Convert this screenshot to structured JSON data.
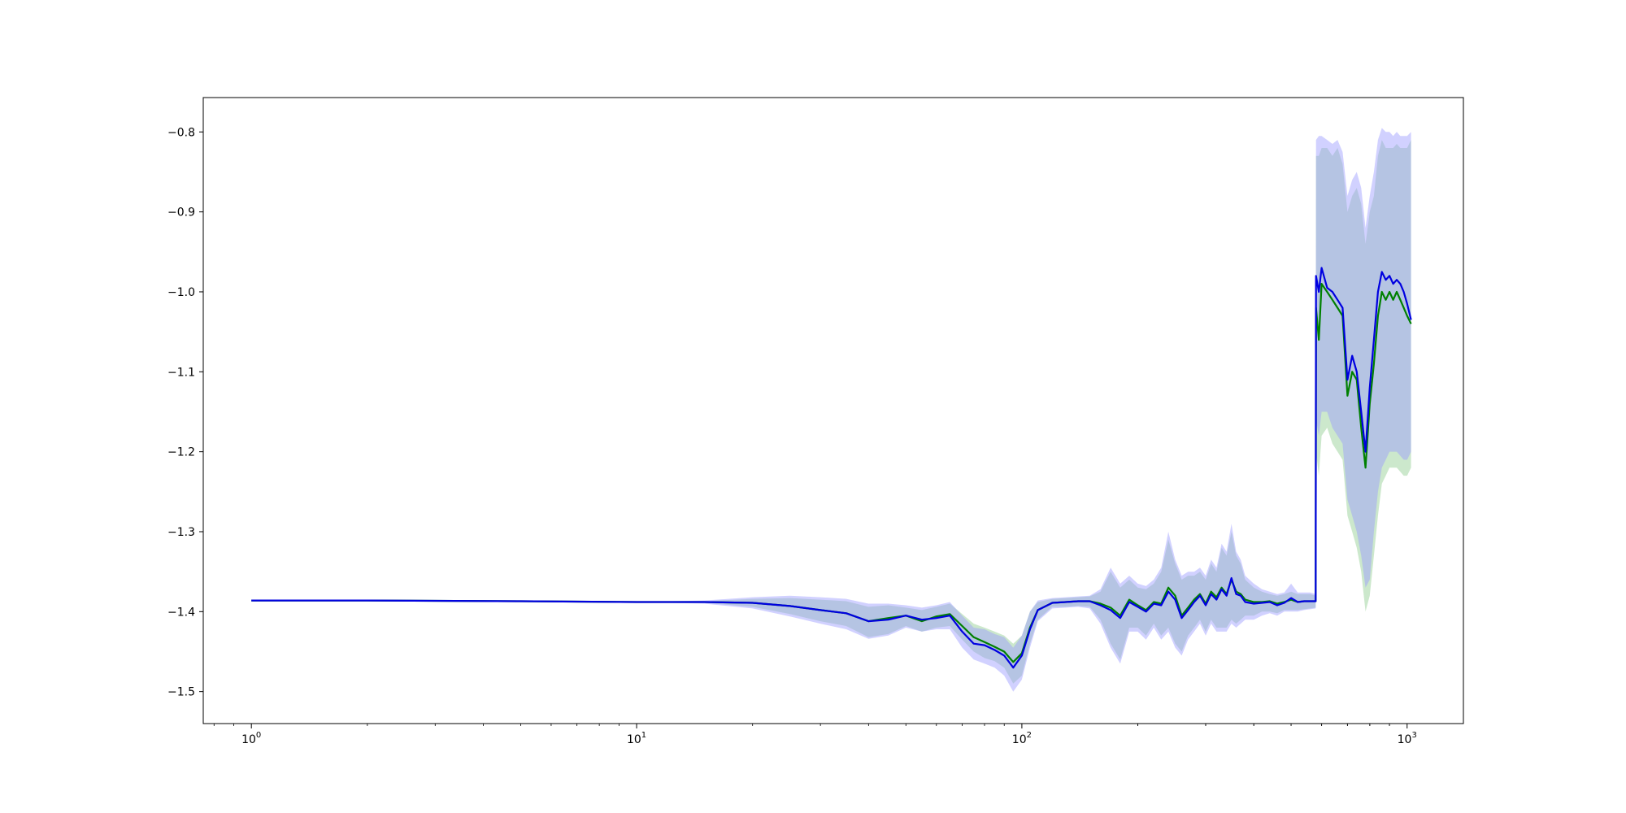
{
  "chart_data": {
    "type": "line",
    "title": "",
    "xlabel": "",
    "ylabel": "",
    "xscale": "log",
    "xlim": [
      0.75,
      1400
    ],
    "ylim": [
      -1.54,
      -0.757
    ],
    "grid": false,
    "legend": "none",
    "x_ticks": [
      {
        "value": 1,
        "base": "10",
        "exp": "0"
      },
      {
        "value": 10,
        "base": "10",
        "exp": "1"
      },
      {
        "value": 100,
        "base": "10",
        "exp": "2"
      },
      {
        "value": 1000,
        "base": "10",
        "exp": "3"
      }
    ],
    "y_ticks": [
      {
        "value": -0.8,
        "label": "−0.8"
      },
      {
        "value": -0.9,
        "label": "−0.9"
      },
      {
        "value": -1.0,
        "label": "−1.0"
      },
      {
        "value": -1.1,
        "label": "−1.1"
      },
      {
        "value": -1.2,
        "label": "−1.2"
      },
      {
        "value": -1.3,
        "label": "−1.3"
      },
      {
        "value": -1.4,
        "label": "−1.4"
      },
      {
        "value": -1.5,
        "label": "−1.5"
      }
    ],
    "series": [
      {
        "color": "#008000",
        "band_color": "#8fcc8f",
        "points": [
          [
            1,
            -1.386,
            -1.386,
            -1.386
          ],
          [
            2,
            -1.386,
            -1.386,
            -1.386
          ],
          [
            5,
            -1.387,
            -1.387,
            -1.387
          ],
          [
            10,
            -1.388,
            -1.388,
            -1.388
          ],
          [
            15,
            -1.388,
            -1.387,
            -1.389
          ],
          [
            20,
            -1.389,
            -1.384,
            -1.394
          ],
          [
            25,
            -1.393,
            -1.383,
            -1.403
          ],
          [
            30,
            -1.398,
            -1.385,
            -1.412
          ],
          [
            35,
            -1.402,
            -1.387,
            -1.418
          ],
          [
            40,
            -1.412,
            -1.394,
            -1.432
          ],
          [
            45,
            -1.408,
            -1.392,
            -1.428
          ],
          [
            50,
            -1.405,
            -1.395,
            -1.418
          ],
          [
            55,
            -1.412,
            -1.398,
            -1.425
          ],
          [
            60,
            -1.406,
            -1.394,
            -1.42
          ],
          [
            65,
            -1.403,
            -1.39,
            -1.418
          ],
          [
            70,
            -1.418,
            -1.403,
            -1.435
          ],
          [
            75,
            -1.432,
            -1.415,
            -1.45
          ],
          [
            80,
            -1.438,
            -1.42,
            -1.458
          ],
          [
            85,
            -1.444,
            -1.425,
            -1.462
          ],
          [
            90,
            -1.45,
            -1.43,
            -1.47
          ],
          [
            95,
            -1.463,
            -1.44,
            -1.49
          ],
          [
            100,
            -1.452,
            -1.43,
            -1.48
          ],
          [
            105,
            -1.42,
            -1.4,
            -1.44
          ],
          [
            110,
            -1.398,
            -1.388,
            -1.41
          ],
          [
            120,
            -1.389,
            -1.384,
            -1.394
          ],
          [
            130,
            -1.388,
            -1.383,
            -1.394
          ],
          [
            140,
            -1.387,
            -1.382,
            -1.393
          ],
          [
            150,
            -1.387,
            -1.381,
            -1.394
          ],
          [
            160,
            -1.39,
            -1.375,
            -1.41
          ],
          [
            170,
            -1.395,
            -1.35,
            -1.44
          ],
          [
            180,
            -1.405,
            -1.37,
            -1.46
          ],
          [
            190,
            -1.385,
            -1.36,
            -1.42
          ],
          [
            200,
            -1.392,
            -1.37,
            -1.42
          ],
          [
            210,
            -1.398,
            -1.372,
            -1.43
          ],
          [
            220,
            -1.388,
            -1.365,
            -1.415
          ],
          [
            230,
            -1.39,
            -1.35,
            -1.43
          ],
          [
            240,
            -1.37,
            -1.31,
            -1.42
          ],
          [
            250,
            -1.38,
            -1.34,
            -1.44
          ],
          [
            260,
            -1.405,
            -1.36,
            -1.45
          ],
          [
            270,
            -1.395,
            -1.355,
            -1.43
          ],
          [
            280,
            -1.385,
            -1.355,
            -1.42
          ],
          [
            290,
            -1.378,
            -1.35,
            -1.41
          ],
          [
            300,
            -1.39,
            -1.36,
            -1.425
          ],
          [
            310,
            -1.375,
            -1.34,
            -1.41
          ],
          [
            320,
            -1.382,
            -1.35,
            -1.42
          ],
          [
            330,
            -1.37,
            -1.32,
            -1.42
          ],
          [
            340,
            -1.378,
            -1.33,
            -1.42
          ],
          [
            350,
            -1.36,
            -1.3,
            -1.41
          ],
          [
            360,
            -1.375,
            -1.33,
            -1.415
          ],
          [
            370,
            -1.378,
            -1.34,
            -1.41
          ],
          [
            380,
            -1.385,
            -1.36,
            -1.405
          ],
          [
            400,
            -1.388,
            -1.37,
            -1.405
          ],
          [
            420,
            -1.388,
            -1.375,
            -1.4
          ],
          [
            440,
            -1.387,
            -1.378,
            -1.4
          ],
          [
            460,
            -1.39,
            -1.38,
            -1.402
          ],
          [
            480,
            -1.388,
            -1.378,
            -1.398
          ],
          [
            500,
            -1.385,
            -1.375,
            -1.398
          ],
          [
            520,
            -1.388,
            -1.378,
            -1.398
          ],
          [
            540,
            -1.387,
            -1.378,
            -1.397
          ],
          [
            560,
            -1.387,
            -1.378,
            -1.396
          ],
          [
            579,
            -1.387,
            -1.38,
            -1.395
          ],
          [
            580,
            -1.02,
            -0.83,
            -1.2
          ],
          [
            590,
            -1.06,
            -0.83,
            -1.23
          ],
          [
            600,
            -0.99,
            -0.82,
            -1.18
          ],
          [
            620,
            -1.0,
            -0.82,
            -1.17
          ],
          [
            640,
            -1.01,
            -0.83,
            -1.19
          ],
          [
            660,
            -1.02,
            -0.82,
            -1.2
          ],
          [
            680,
            -1.03,
            -0.84,
            -1.21
          ],
          [
            700,
            -1.13,
            -0.9,
            -1.28
          ],
          [
            720,
            -1.1,
            -0.88,
            -1.3
          ],
          [
            740,
            -1.11,
            -0.87,
            -1.32
          ],
          [
            760,
            -1.17,
            -0.89,
            -1.35
          ],
          [
            780,
            -1.22,
            -0.94,
            -1.4
          ],
          [
            800,
            -1.14,
            -0.9,
            -1.38
          ],
          [
            820,
            -1.09,
            -0.88,
            -1.33
          ],
          [
            840,
            -1.03,
            -0.83,
            -1.28
          ],
          [
            860,
            -1.0,
            -0.81,
            -1.24
          ],
          [
            880,
            -1.01,
            -0.82,
            -1.23
          ],
          [
            900,
            -1.0,
            -0.82,
            -1.22
          ],
          [
            920,
            -1.01,
            -0.82,
            -1.22
          ],
          [
            940,
            -1.0,
            -0.815,
            -1.22
          ],
          [
            960,
            -1.01,
            -0.82,
            -1.225
          ],
          [
            980,
            -1.02,
            -0.82,
            -1.23
          ],
          [
            1000,
            -1.03,
            -0.82,
            -1.23
          ],
          [
            1024,
            -1.04,
            -0.81,
            -1.22
          ]
        ]
      },
      {
        "color": "#0000e0",
        "band_color": "#9999ff",
        "points": [
          [
            1,
            -1.386,
            -1.386,
            -1.386
          ],
          [
            2,
            -1.386,
            -1.386,
            -1.386
          ],
          [
            5,
            -1.387,
            -1.387,
            -1.387
          ],
          [
            10,
            -1.388,
            -1.388,
            -1.388
          ],
          [
            15,
            -1.388,
            -1.386,
            -1.39
          ],
          [
            20,
            -1.389,
            -1.382,
            -1.396
          ],
          [
            25,
            -1.393,
            -1.38,
            -1.406
          ],
          [
            30,
            -1.398,
            -1.382,
            -1.415
          ],
          [
            35,
            -1.402,
            -1.384,
            -1.422
          ],
          [
            40,
            -1.412,
            -1.39,
            -1.434
          ],
          [
            45,
            -1.41,
            -1.39,
            -1.43
          ],
          [
            50,
            -1.405,
            -1.392,
            -1.42
          ],
          [
            55,
            -1.41,
            -1.395,
            -1.425
          ],
          [
            60,
            -1.408,
            -1.392,
            -1.422
          ],
          [
            65,
            -1.405,
            -1.388,
            -1.422
          ],
          [
            70,
            -1.425,
            -1.405,
            -1.445
          ],
          [
            75,
            -1.44,
            -1.42,
            -1.46
          ],
          [
            80,
            -1.442,
            -1.422,
            -1.465
          ],
          [
            85,
            -1.448,
            -1.428,
            -1.47
          ],
          [
            90,
            -1.455,
            -1.432,
            -1.48
          ],
          [
            95,
            -1.47,
            -1.445,
            -1.5
          ],
          [
            100,
            -1.455,
            -1.43,
            -1.485
          ],
          [
            105,
            -1.422,
            -1.4,
            -1.445
          ],
          [
            110,
            -1.398,
            -1.386,
            -1.412
          ],
          [
            120,
            -1.389,
            -1.383,
            -1.396
          ],
          [
            130,
            -1.388,
            -1.382,
            -1.395
          ],
          [
            140,
            -1.387,
            -1.381,
            -1.394
          ],
          [
            150,
            -1.387,
            -1.38,
            -1.396
          ],
          [
            160,
            -1.392,
            -1.372,
            -1.415
          ],
          [
            170,
            -1.398,
            -1.345,
            -1.445
          ],
          [
            180,
            -1.408,
            -1.365,
            -1.465
          ],
          [
            190,
            -1.388,
            -1.355,
            -1.425
          ],
          [
            200,
            -1.394,
            -1.365,
            -1.425
          ],
          [
            210,
            -1.4,
            -1.368,
            -1.435
          ],
          [
            220,
            -1.39,
            -1.36,
            -1.42
          ],
          [
            230,
            -1.392,
            -1.345,
            -1.435
          ],
          [
            240,
            -1.375,
            -1.3,
            -1.425
          ],
          [
            250,
            -1.385,
            -1.335,
            -1.445
          ],
          [
            260,
            -1.408,
            -1.355,
            -1.455
          ],
          [
            270,
            -1.398,
            -1.35,
            -1.435
          ],
          [
            280,
            -1.388,
            -1.35,
            -1.425
          ],
          [
            290,
            -1.38,
            -1.345,
            -1.415
          ],
          [
            300,
            -1.392,
            -1.355,
            -1.43
          ],
          [
            310,
            -1.378,
            -1.335,
            -1.415
          ],
          [
            320,
            -1.385,
            -1.345,
            -1.425
          ],
          [
            330,
            -1.372,
            -1.315,
            -1.425
          ],
          [
            340,
            -1.38,
            -1.325,
            -1.425
          ],
          [
            350,
            -1.358,
            -1.29,
            -1.415
          ],
          [
            360,
            -1.378,
            -1.325,
            -1.42
          ],
          [
            370,
            -1.38,
            -1.335,
            -1.415
          ],
          [
            380,
            -1.388,
            -1.355,
            -1.41
          ],
          [
            400,
            -1.39,
            -1.365,
            -1.41
          ],
          [
            420,
            -1.389,
            -1.372,
            -1.405
          ],
          [
            440,
            -1.388,
            -1.375,
            -1.402
          ],
          [
            460,
            -1.392,
            -1.378,
            -1.405
          ],
          [
            480,
            -1.389,
            -1.376,
            -1.4
          ],
          [
            500,
            -1.383,
            -1.365,
            -1.4
          ],
          [
            520,
            -1.388,
            -1.376,
            -1.4
          ],
          [
            540,
            -1.387,
            -1.376,
            -1.398
          ],
          [
            560,
            -1.387,
            -1.376,
            -1.397
          ],
          [
            579,
            -1.387,
            -1.378,
            -1.396
          ],
          [
            580,
            -0.98,
            -0.81,
            -1.16
          ],
          [
            590,
            -1.0,
            -0.805,
            -1.18
          ],
          [
            600,
            -0.97,
            -0.805,
            -1.15
          ],
          [
            620,
            -0.995,
            -0.81,
            -1.15
          ],
          [
            640,
            -1.0,
            -0.815,
            -1.17
          ],
          [
            660,
            -1.01,
            -0.81,
            -1.18
          ],
          [
            680,
            -1.02,
            -0.825,
            -1.19
          ],
          [
            700,
            -1.11,
            -0.88,
            -1.26
          ],
          [
            720,
            -1.08,
            -0.86,
            -1.28
          ],
          [
            740,
            -1.1,
            -0.85,
            -1.3
          ],
          [
            760,
            -1.15,
            -0.87,
            -1.33
          ],
          [
            780,
            -1.2,
            -0.92,
            -1.37
          ],
          [
            800,
            -1.12,
            -0.88,
            -1.36
          ],
          [
            820,
            -1.06,
            -0.85,
            -1.3
          ],
          [
            840,
            -1.0,
            -0.81,
            -1.25
          ],
          [
            860,
            -0.975,
            -0.795,
            -1.22
          ],
          [
            880,
            -0.985,
            -0.8,
            -1.21
          ],
          [
            900,
            -0.98,
            -0.8,
            -1.2
          ],
          [
            920,
            -0.99,
            -0.805,
            -1.2
          ],
          [
            940,
            -0.985,
            -0.8,
            -1.2
          ],
          [
            960,
            -0.99,
            -0.805,
            -1.205
          ],
          [
            980,
            -1.0,
            -0.805,
            -1.21
          ],
          [
            1000,
            -1.015,
            -0.805,
            -1.21
          ],
          [
            1024,
            -1.035,
            -0.8,
            -1.2
          ]
        ]
      }
    ]
  }
}
